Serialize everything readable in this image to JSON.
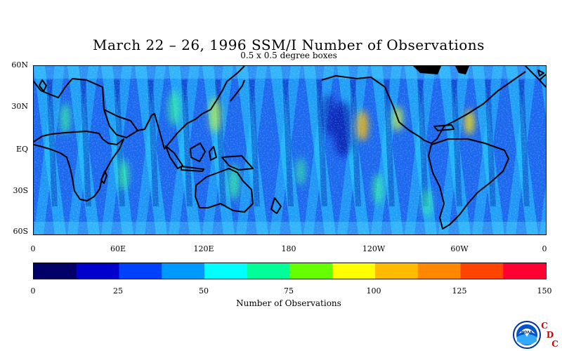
{
  "title": "March 22 – 26, 1996 SSM/I Number of Observations",
  "subtitle": "0.5 x 0.5 degree boxes",
  "y_axis_labels": [
    "60N",
    "30N",
    "EQ",
    "30S",
    "60S"
  ],
  "x_axis_labels": [
    "0",
    "60E",
    "120E",
    "180",
    "120W",
    "60W",
    "0"
  ],
  "colorbar": {
    "title": "Number of Observations",
    "tick_labels": [
      "0",
      "25",
      "50",
      "75",
      "100",
      "125",
      "150"
    ],
    "colors": [
      "#000066",
      "#0000cc",
      "#0040ff",
      "#0099ff",
      "#00ffff",
      "#00ff99",
      "#66ff00",
      "#ffff00",
      "#ffbb00",
      "#ff8800",
      "#ff4400",
      "#ff0033"
    ]
  },
  "logo": {
    "emblem_text": "NOAA",
    "letters": [
      "C",
      "D",
      "C"
    ]
  }
}
